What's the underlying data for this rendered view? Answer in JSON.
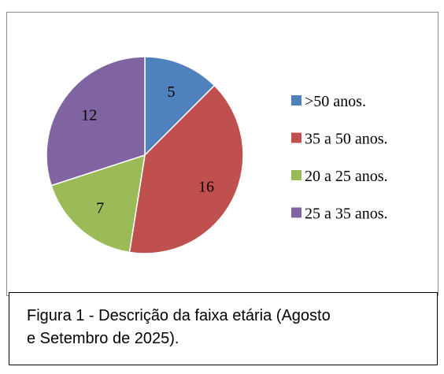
{
  "chart_data": {
    "type": "pie",
    "categories": [
      ">50 anos.",
      "35 a 50 anos.",
      "20 a 25 anos.",
      "25 a 35 anos."
    ],
    "values": [
      5,
      16,
      7,
      12
    ],
    "colors": [
      "#4f81bd",
      "#c0504d",
      "#9bbb59",
      "#8064a2"
    ],
    "legend": "right",
    "caption": [
      "Figura 1 - Descrição da faixa etária (Agosto",
      "e Setembro de 2025)."
    ]
  }
}
